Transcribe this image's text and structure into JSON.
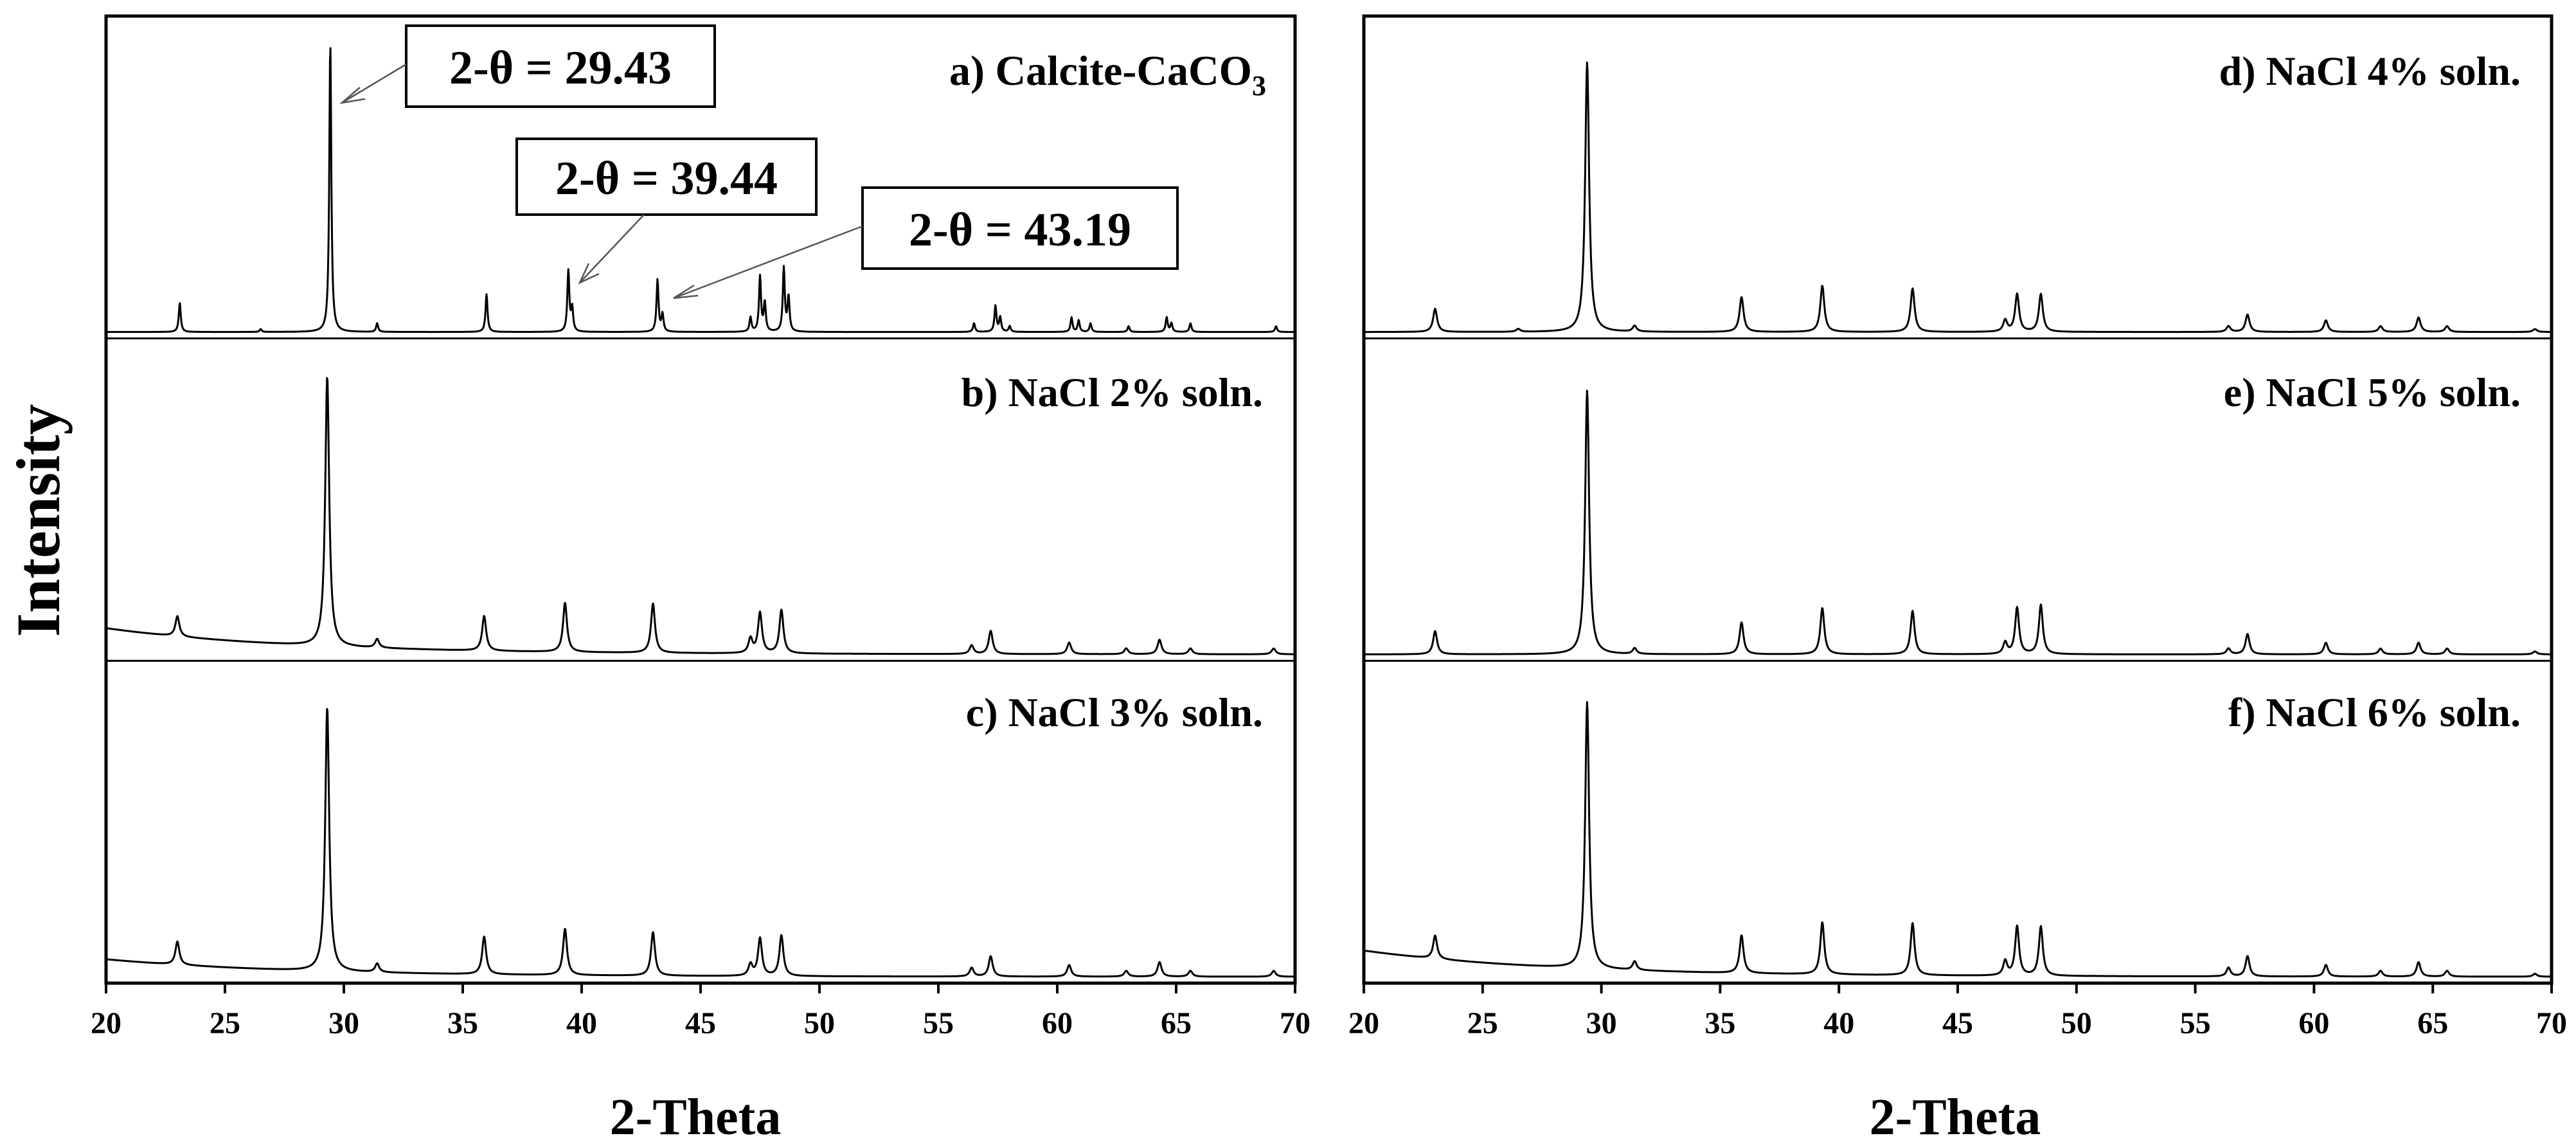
{
  "figure": {
    "ylabel": "Intensity",
    "xlabel": "2-Theta",
    "xlim": [
      20,
      70
    ],
    "xticks": [
      20,
      25,
      30,
      35,
      40,
      45,
      50,
      55,
      60,
      65,
      70
    ]
  },
  "annotations": [
    {
      "text": "2-θ = 29.43",
      "x": 29.43
    },
    {
      "text": "2-θ = 39.44",
      "x": 39.44
    },
    {
      "text": "2-θ = 43.19",
      "x": 43.19
    }
  ],
  "chart_data": [
    {
      "type": "line",
      "label_main": "a) Calcite-CaCO",
      "label_sub": "3",
      "xlabel": "2-Theta",
      "ylabel": "Intensity",
      "xlim": [
        20,
        70
      ],
      "peaks": [
        [
          23.1,
          0.1
        ],
        [
          26.5,
          0.01
        ],
        [
          29.43,
          1.0
        ],
        [
          31.4,
          0.03
        ],
        [
          36.0,
          0.13
        ],
        [
          39.44,
          0.21
        ],
        [
          39.6,
          0.08
        ],
        [
          43.19,
          0.18
        ],
        [
          43.4,
          0.06
        ],
        [
          47.1,
          0.05
        ],
        [
          47.5,
          0.19
        ],
        [
          47.7,
          0.1
        ],
        [
          48.5,
          0.22
        ],
        [
          48.7,
          0.12
        ],
        [
          56.5,
          0.03
        ],
        [
          57.4,
          0.09
        ],
        [
          57.6,
          0.05
        ],
        [
          58.0,
          0.02
        ],
        [
          60.6,
          0.05
        ],
        [
          60.9,
          0.04
        ],
        [
          61.4,
          0.03
        ],
        [
          63.0,
          0.02
        ],
        [
          64.6,
          0.05
        ],
        [
          64.8,
          0.03
        ],
        [
          65.6,
          0.03
        ],
        [
          69.2,
          0.02
        ]
      ],
      "width": 0.05,
      "baseline": 0.0
    },
    {
      "type": "line",
      "label_main": "b) NaCl 2% soln.",
      "label_sub": "",
      "xlabel": "2-Theta",
      "ylabel": "Intensity",
      "xlim": [
        20,
        70
      ],
      "peaks": [
        [
          23.0,
          0.07
        ],
        [
          29.3,
          0.93
        ],
        [
          31.4,
          0.03
        ],
        [
          35.9,
          0.12
        ],
        [
          39.3,
          0.17
        ],
        [
          43.0,
          0.17
        ],
        [
          47.1,
          0.05
        ],
        [
          47.5,
          0.14
        ],
        [
          48.4,
          0.15
        ],
        [
          56.4,
          0.03
        ],
        [
          57.2,
          0.08
        ],
        [
          60.5,
          0.04
        ],
        [
          62.9,
          0.02
        ],
        [
          64.3,
          0.05
        ],
        [
          65.6,
          0.02
        ],
        [
          69.1,
          0.02
        ]
      ],
      "width": 0.1,
      "baseline": 0.09
    },
    {
      "type": "line",
      "label_main": "c) NaCl 3% soln.",
      "label_sub": "",
      "xlabel": "2-Theta",
      "ylabel": "Intensity",
      "xlim": [
        20,
        70
      ],
      "peaks": [
        [
          23.0,
          0.08
        ],
        [
          29.3,
          0.91
        ],
        [
          31.4,
          0.03
        ],
        [
          35.9,
          0.13
        ],
        [
          39.3,
          0.16
        ],
        [
          43.0,
          0.15
        ],
        [
          47.1,
          0.04
        ],
        [
          47.5,
          0.13
        ],
        [
          48.4,
          0.14
        ],
        [
          56.4,
          0.03
        ],
        [
          57.2,
          0.07
        ],
        [
          60.5,
          0.04
        ],
        [
          62.9,
          0.02
        ],
        [
          64.3,
          0.05
        ],
        [
          65.6,
          0.02
        ],
        [
          69.1,
          0.02
        ]
      ],
      "width": 0.1,
      "baseline": 0.06
    },
    {
      "type": "line",
      "label_main": "d) NaCl 4% soln.",
      "label_sub": "",
      "xlabel": "2-Theta",
      "ylabel": "Intensity",
      "xlim": [
        20,
        70
      ],
      "peaks": [
        [
          23.0,
          0.08
        ],
        [
          26.5,
          0.01
        ],
        [
          29.4,
          0.93
        ],
        [
          31.4,
          0.02
        ],
        [
          35.9,
          0.12
        ],
        [
          39.3,
          0.16
        ],
        [
          43.1,
          0.15
        ],
        [
          47.0,
          0.04
        ],
        [
          47.5,
          0.13
        ],
        [
          48.5,
          0.13
        ],
        [
          56.4,
          0.02
        ],
        [
          57.2,
          0.06
        ],
        [
          60.5,
          0.04
        ],
        [
          62.8,
          0.02
        ],
        [
          64.4,
          0.05
        ],
        [
          65.6,
          0.02
        ],
        [
          69.3,
          0.01
        ]
      ],
      "width": 0.1,
      "baseline": 0.0
    },
    {
      "type": "line",
      "label_main": "e) NaCl 5% soln.",
      "label_sub": "",
      "xlabel": "2-Theta",
      "ylabel": "Intensity",
      "xlim": [
        20,
        70
      ],
      "peaks": [
        [
          23.0,
          0.08
        ],
        [
          29.4,
          0.91
        ],
        [
          31.4,
          0.02
        ],
        [
          35.9,
          0.11
        ],
        [
          39.3,
          0.16
        ],
        [
          43.1,
          0.15
        ],
        [
          47.0,
          0.04
        ],
        [
          47.5,
          0.16
        ],
        [
          48.5,
          0.17
        ],
        [
          56.4,
          0.02
        ],
        [
          57.2,
          0.07
        ],
        [
          60.5,
          0.04
        ],
        [
          62.8,
          0.02
        ],
        [
          64.4,
          0.04
        ],
        [
          65.6,
          0.02
        ],
        [
          69.3,
          0.01
        ]
      ],
      "width": 0.1,
      "baseline": 0.0
    },
    {
      "type": "line",
      "label_main": "f) NaCl 6% soln.",
      "label_sub": "",
      "xlabel": "2-Theta",
      "ylabel": "Intensity",
      "xlim": [
        20,
        70
      ],
      "peaks": [
        [
          23.0,
          0.08
        ],
        [
          29.4,
          0.92
        ],
        [
          31.4,
          0.03
        ],
        [
          35.9,
          0.13
        ],
        [
          39.3,
          0.18
        ],
        [
          43.1,
          0.18
        ],
        [
          47.0,
          0.05
        ],
        [
          47.5,
          0.17
        ],
        [
          48.5,
          0.17
        ],
        [
          56.4,
          0.03
        ],
        [
          57.2,
          0.07
        ],
        [
          60.5,
          0.04
        ],
        [
          62.8,
          0.02
        ],
        [
          64.4,
          0.05
        ],
        [
          65.6,
          0.02
        ],
        [
          69.3,
          0.01
        ]
      ],
      "width": 0.1,
      "baseline": 0.09
    }
  ]
}
